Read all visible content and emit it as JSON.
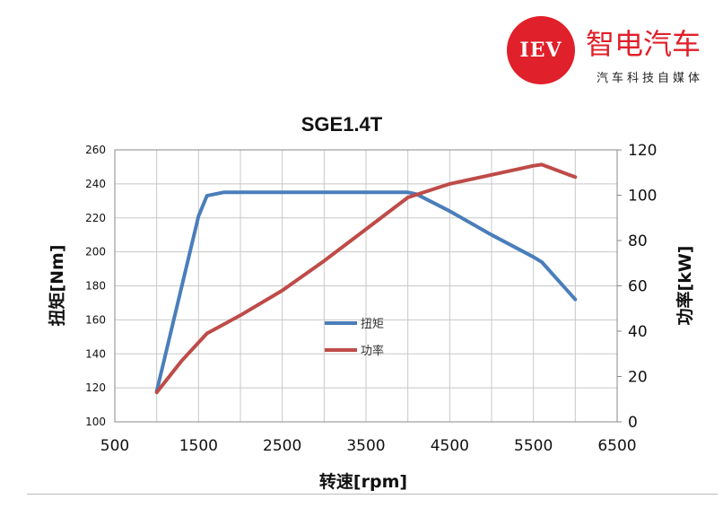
{
  "logo": {
    "badge_text": "IEV",
    "name": "智电汽车",
    "tagline": "汽车科技自媒体",
    "brand_color": "#e0202a"
  },
  "chart_data": {
    "type": "line",
    "title": "SGE1.4T",
    "xlabel": "转速[rpm]",
    "ylabel_left": "扭矩[Nm]",
    "ylabel_right": "功率[kW]",
    "xlim": [
      500,
      6500
    ],
    "ylim_left": [
      100,
      260
    ],
    "ylim_right": [
      0,
      120
    ],
    "xticks": [
      500,
      1500,
      2500,
      3500,
      4500,
      5500,
      6500
    ],
    "xtick_labels": [
      "500",
      "1500",
      "2500",
      "3500",
      "4500",
      "5500",
      "6500"
    ],
    "yticks_left": [
      100,
      120,
      140,
      160,
      180,
      200,
      220,
      240,
      260
    ],
    "ytick_labels_left": [
      "100",
      "120",
      "140",
      "160",
      "180",
      "200",
      "220",
      "240",
      "260"
    ],
    "yticks_right": [
      0,
      20,
      40,
      60,
      80,
      100,
      120
    ],
    "ytick_labels_right": [
      "0",
      "20",
      "40",
      "60",
      "80",
      "100",
      "120"
    ],
    "x_gridlines": [
      500,
      1000,
      1500,
      2000,
      2500,
      3000,
      3500,
      4000,
      4500,
      5000,
      5500,
      6000,
      6500
    ],
    "grid": true,
    "legend_position": "center",
    "series": [
      {
        "name": "扭矩",
        "axis": "left",
        "color": "#4a7ebb",
        "x": [
          1000,
          1500,
          1600,
          1800,
          2500,
          3500,
          4000,
          4100,
          4500,
          5000,
          5500,
          5600,
          6000
        ],
        "y": [
          118,
          221,
          233,
          235,
          235,
          235,
          235,
          234,
          224,
          210,
          197,
          194,
          172
        ]
      },
      {
        "name": "功率",
        "axis": "right",
        "color": "#be4b48",
        "x": [
          1000,
          1300,
          1600,
          2000,
          2500,
          3000,
          3500,
          4000,
          4500,
          5000,
          5500,
          5600,
          6000
        ],
        "y": [
          13,
          27,
          39,
          47,
          58,
          71,
          85,
          99,
          105,
          109,
          113,
          113.5,
          108
        ]
      }
    ]
  }
}
